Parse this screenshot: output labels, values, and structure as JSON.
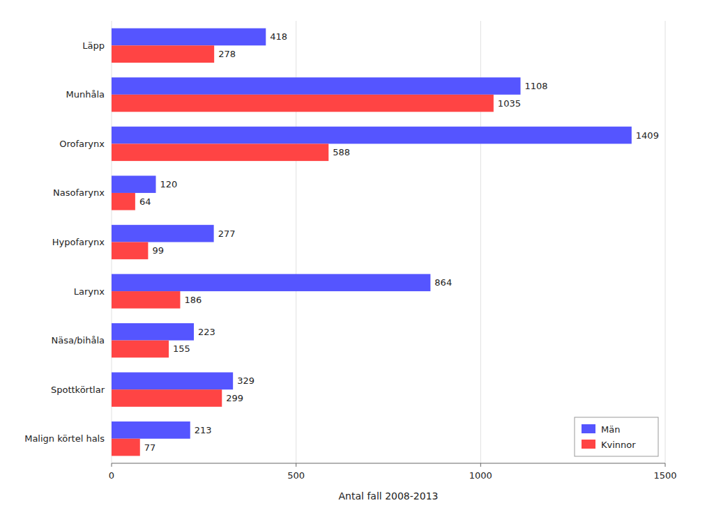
{
  "chart_data": {
    "type": "bar",
    "orientation": "horizontal",
    "categories": [
      "Malign körtel hals",
      "Spottkörtlar",
      "Näsa/bihåla",
      "Larynx",
      "Hypofarynx",
      "Nasofarynx",
      "Orofarynx",
      "Munhåla",
      "Läpp"
    ],
    "series": [
      {
        "name": "Män",
        "color": "#5555ff",
        "values": [
          213,
          329,
          223,
          864,
          277,
          120,
          1409,
          1108,
          418
        ]
      },
      {
        "name": "Kvinnor",
        "color": "#ff4444",
        "values": [
          77,
          299,
          155,
          186,
          99,
          64,
          588,
          1035,
          278
        ]
      }
    ],
    "xlabel": "Antal fall 2008-2013",
    "xlim": [
      0,
      1500
    ],
    "xticks": [
      0,
      500,
      1000,
      1500
    ],
    "grid": true,
    "legend": "lower right",
    "data_labels": true
  }
}
